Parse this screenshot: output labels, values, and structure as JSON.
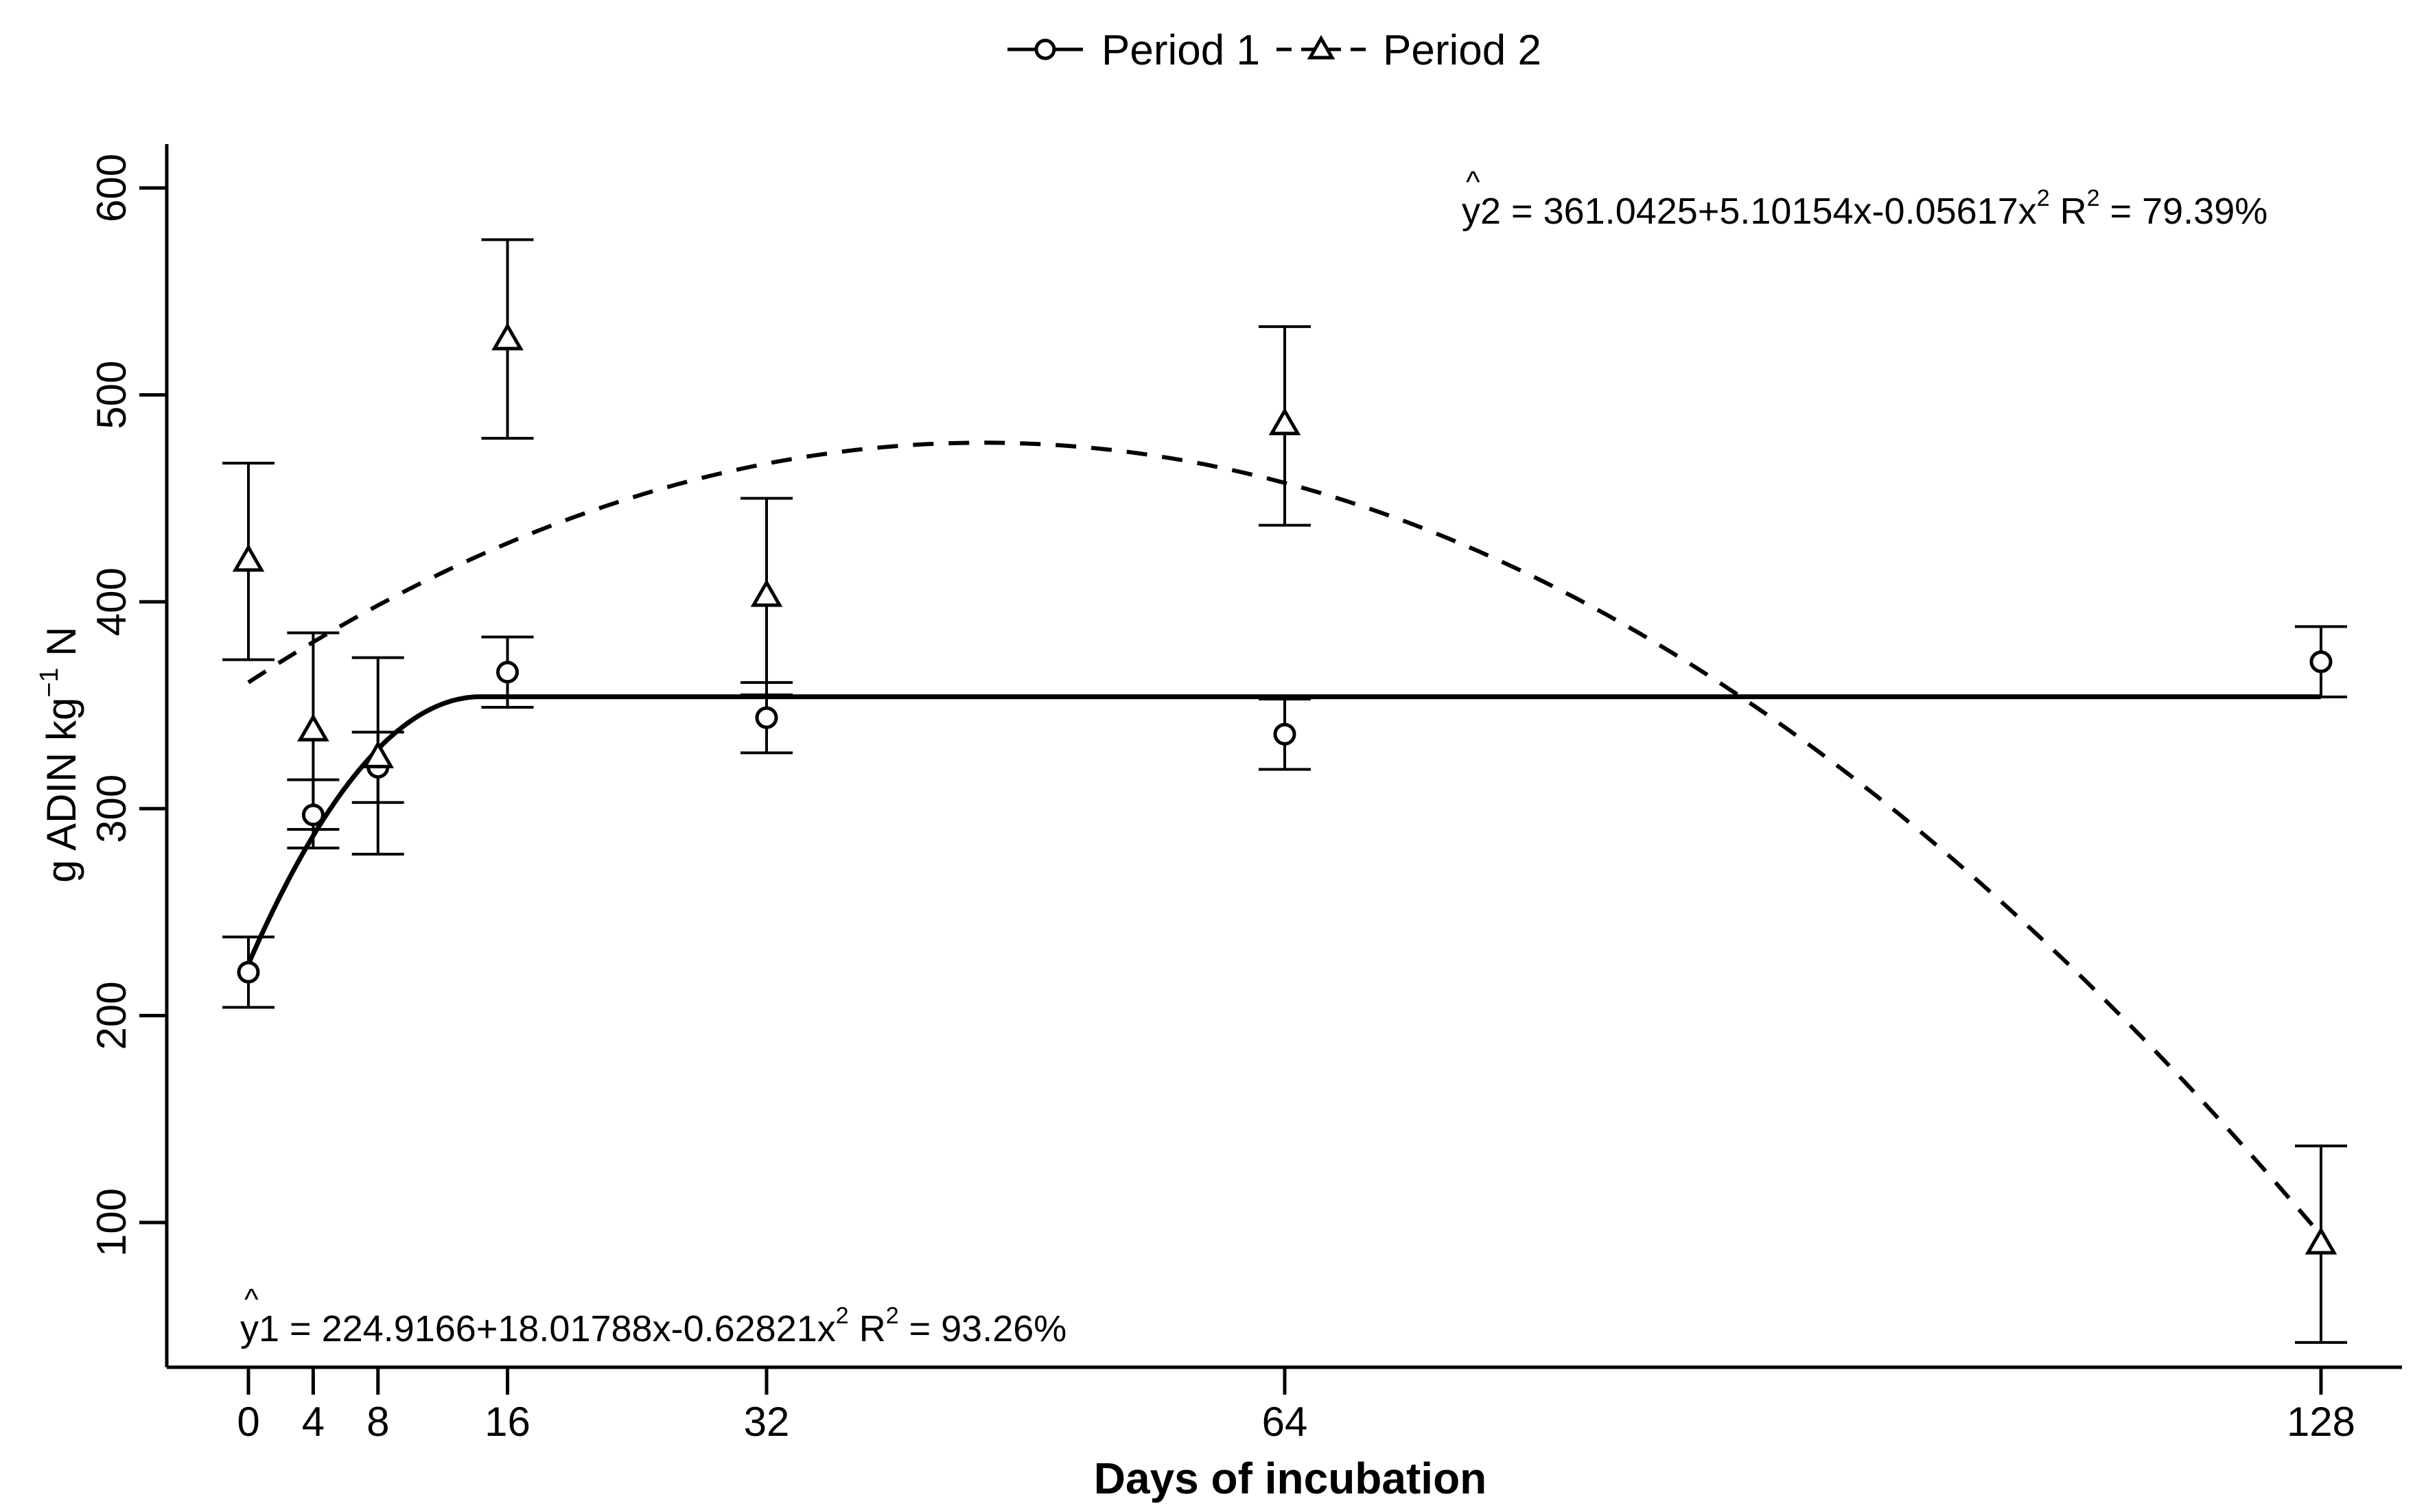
{
  "chart_data": {
    "type": "line",
    "xlabel": "Days of incubation",
    "ylabel": {
      "prefix": "g ADIN  kg",
      "superscript": "−1",
      "suffix": " N"
    },
    "xlim": [
      0,
      128
    ],
    "ylim": [
      30,
      620
    ],
    "xticks": [
      0,
      4,
      8,
      16,
      32,
      64,
      128
    ],
    "xtick_labels": [
      "0",
      "4",
      "8",
      "16",
      "32",
      "64",
      "128"
    ],
    "yticks": [
      100,
      200,
      300,
      400,
      500,
      600
    ],
    "ytick_labels": [
      "100",
      "200",
      "300",
      "400",
      "500",
      "600"
    ],
    "grid": false,
    "legend": {
      "position": "top-center",
      "period1_label": "Period 1",
      "period2_label": "Period 2"
    },
    "series": [
      {
        "name": "Period 1",
        "marker": "circle",
        "line_style": "solid",
        "x": [
          0,
          4,
          8,
          16,
          32,
          64,
          128
        ],
        "y": [
          221,
          297,
          320,
          366,
          344,
          336,
          371
        ],
        "err_low": [
          204,
          281,
          303,
          349,
          327,
          319,
          354
        ],
        "err_high": [
          238,
          314,
          337,
          383,
          361,
          353,
          388
        ],
        "fit": {
          "a": 224.9166,
          "b": 18.01788,
          "c": -0.62821,
          "plateau_from": 14.34
        },
        "equation": {
          "y": "y",
          "hat": "^",
          "sub": "1",
          "body": " = 224.9166+18.01788x-0.62821x",
          "exp": "2",
          "r2_label": "  R",
          "r2_exp": "2",
          "r2_value": " = 93.26%"
        }
      },
      {
        "name": "Period 2",
        "marker": "triangle",
        "line_style": "dashed",
        "x": [
          0,
          4,
          8,
          16,
          32,
          64,
          128
        ],
        "y": [
          420,
          338,
          325,
          527,
          403,
          486,
          90
        ],
        "err_low": [
          372,
          290,
          278,
          479,
          355,
          437,
          42
        ],
        "err_high": [
          467,
          385,
          373,
          575,
          450,
          533,
          137
        ],
        "fit": {
          "a": 361.0425,
          "b": 5.10154,
          "c": -0.05617
        },
        "equation": {
          "y": "y",
          "hat": "^",
          "sub": "2",
          "body": " = 361.0425+5.10154x-0.05617x",
          "exp": "2",
          "r2_label": "  R",
          "r2_exp": "2",
          "r2_value": " = 79.39%"
        }
      }
    ]
  }
}
